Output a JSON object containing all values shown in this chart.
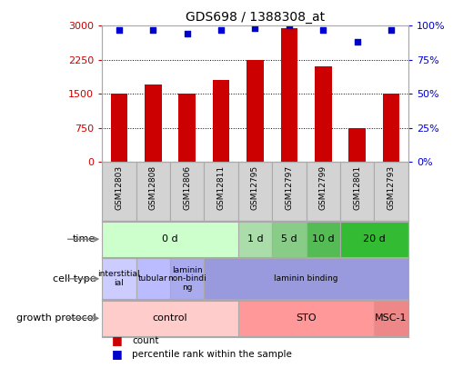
{
  "title": "GDS698 / 1388308_at",
  "samples": [
    "GSM12803",
    "GSM12808",
    "GSM12806",
    "GSM12811",
    "GSM12795",
    "GSM12797",
    "GSM12799",
    "GSM12801",
    "GSM12793"
  ],
  "counts": [
    1500,
    1700,
    1500,
    1800,
    2250,
    2950,
    2100,
    750,
    1500
  ],
  "percentiles": [
    97,
    97,
    94,
    97,
    98,
    100,
    97,
    88,
    97
  ],
  "bar_color": "#cc0000",
  "dot_color": "#0000cc",
  "ylim_left": [
    0,
    3000
  ],
  "ylim_right": [
    0,
    100
  ],
  "yticks_left": [
    0,
    750,
    1500,
    2250,
    3000
  ],
  "yticks_right": [
    0,
    25,
    50,
    75,
    100
  ],
  "time_data": [
    {
      "cols": [
        0,
        1,
        2,
        3
      ],
      "label": "0 d",
      "color": "#ccffcc"
    },
    {
      "cols": [
        4
      ],
      "label": "1 d",
      "color": "#aaddaa"
    },
    {
      "cols": [
        5
      ],
      "label": "5 d",
      "color": "#88cc88"
    },
    {
      "cols": [
        6
      ],
      "label": "10 d",
      "color": "#55bb55"
    },
    {
      "cols": [
        7,
        8
      ],
      "label": "20 d",
      "color": "#33bb33"
    }
  ],
  "cell_data": [
    {
      "cols": [
        0
      ],
      "label": "interstitial\nial",
      "color": "#ccccff"
    },
    {
      "cols": [
        1
      ],
      "label": "tubular",
      "color": "#bbbbff"
    },
    {
      "cols": [
        2
      ],
      "label": "laminin\nnon-bindi\nng",
      "color": "#aaaaee"
    },
    {
      "cols": [
        3,
        4,
        5,
        6,
        7,
        8
      ],
      "label": "laminin binding",
      "color": "#9999dd"
    }
  ],
  "grow_data": [
    {
      "cols": [
        0,
        1,
        2,
        3
      ],
      "label": "control",
      "color": "#ffcccc"
    },
    {
      "cols": [
        4,
        5,
        6,
        7
      ],
      "label": "STO",
      "color": "#ff9999"
    },
    {
      "cols": [
        8
      ],
      "label": "MSC-1",
      "color": "#ee8888"
    }
  ],
  "sample_bg": "#d3d3d3",
  "legend_items": [
    "count",
    "percentile rank within the sample"
  ],
  "legend_colors": [
    "#cc0000",
    "#0000cc"
  ],
  "bg_color": "#ffffff",
  "spine_color": "#aaaaaa"
}
